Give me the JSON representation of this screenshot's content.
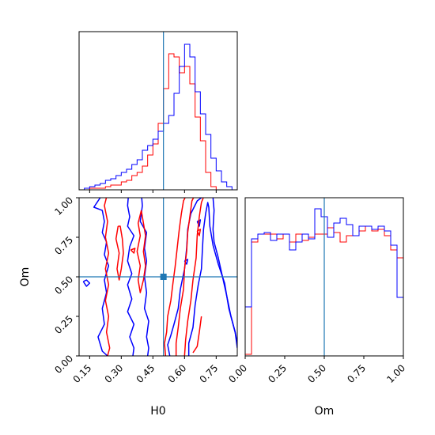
{
  "colors": {
    "red": "#ff0000",
    "blue": "#0000ff",
    "truth": "#1f77b4",
    "frame": "#000000",
    "background": "#ffffff"
  },
  "chart_data": [
    {
      "panel": "H0 marginal",
      "type": "histogram",
      "xlim": [
        0.1,
        0.85
      ],
      "ylim": [
        0,
        1
      ],
      "y_ticks_shown": false,
      "x_tick_labels_shown": false,
      "truth": 0.5,
      "bin_width": 0.025,
      "x_start": 0.1,
      "series": [
        {
          "color": "red",
          "values": [
            0.0,
            0.0,
            0.01,
            0.01,
            0.01,
            0.02,
            0.03,
            0.03,
            0.05,
            0.06,
            0.09,
            0.11,
            0.15,
            0.22,
            0.29,
            0.42,
            0.64,
            0.86,
            0.84,
            0.74,
            0.78,
            0.67,
            0.46,
            0.31,
            0.11,
            0.02,
            0.0,
            0.0,
            0.0,
            0.0
          ]
        },
        {
          "color": "blue",
          "values": [
            0.0,
            0.01,
            0.02,
            0.03,
            0.04,
            0.06,
            0.07,
            0.09,
            0.11,
            0.13,
            0.16,
            0.19,
            0.25,
            0.28,
            0.32,
            0.37,
            0.42,
            0.47,
            0.61,
            0.78,
            0.92,
            0.84,
            0.62,
            0.48,
            0.35,
            0.2,
            0.12,
            0.05,
            0.02,
            0.0
          ]
        }
      ]
    },
    {
      "panel": "H0 vs Om contours",
      "type": "contour",
      "xlabel": "H0",
      "ylabel": "Om",
      "xlim": [
        0.1,
        0.85
      ],
      "ylim": [
        0.0,
        1.0
      ],
      "x_ticks": [
        "0.15",
        "0.30",
        "0.45",
        "0.60",
        "0.75"
      ],
      "x_tick_values": [
        0.15,
        0.3,
        0.45,
        0.6,
        0.75
      ],
      "y_ticks": [
        "0.00",
        "0.25",
        "0.50",
        "0.75",
        "1.00"
      ],
      "y_tick_values": [
        0.0,
        0.25,
        0.5,
        0.75,
        1.0
      ],
      "truth": {
        "x": 0.5,
        "y": 0.5
      },
      "contours": [
        {
          "color": "blue",
          "lines": [
            [
              [
                0.225,
                1.03
              ],
              [
                0.2,
                1.0
              ],
              [
                0.17,
                0.94
              ],
              [
                0.21,
                0.92
              ],
              [
                0.22,
                0.85
              ],
              [
                0.21,
                0.78
              ],
              [
                0.23,
                0.72
              ],
              [
                0.22,
                0.64
              ],
              [
                0.24,
                0.57
              ],
              [
                0.22,
                0.48
              ],
              [
                0.23,
                0.4
              ],
              [
                0.21,
                0.3
              ],
              [
                0.22,
                0.2
              ],
              [
                0.19,
                0.12
              ],
              [
                0.21,
                0.03
              ],
              [
                0.235,
                0.0
              ]
            ],
            [
              [
                0.335,
                1.03
              ],
              [
                0.33,
                0.95
              ],
              [
                0.34,
                0.88
              ],
              [
                0.33,
                0.82
              ],
              [
                0.36,
                0.76
              ],
              [
                0.34,
                0.69
              ],
              [
                0.33,
                0.6
              ],
              [
                0.35,
                0.52
              ],
              [
                0.33,
                0.45
              ],
              [
                0.35,
                0.36
              ],
              [
                0.33,
                0.28
              ],
              [
                0.36,
                0.2
              ],
              [
                0.34,
                0.12
              ],
              [
                0.36,
                0.05
              ],
              [
                0.355,
                0.0
              ]
            ],
            [
              [
                0.395,
                1.03
              ],
              [
                0.4,
                0.95
              ],
              [
                0.39,
                0.85
              ],
              [
                0.42,
                0.78
              ],
              [
                0.41,
                0.68
              ],
              [
                0.42,
                0.6
              ],
              [
                0.41,
                0.5
              ],
              [
                0.42,
                0.4
              ],
              [
                0.41,
                0.3
              ],
              [
                0.43,
                0.22
              ],
              [
                0.42,
                0.12
              ],
              [
                0.43,
                0.05
              ],
              [
                0.425,
                0.0
              ]
            ],
            [
              [
                0.12,
                0.47
              ],
              [
                0.135,
                0.44
              ],
              [
                0.15,
                0.46
              ],
              [
                0.135,
                0.48
              ],
              [
                0.12,
                0.47
              ]
            ],
            [
              [
                0.53,
                0.0
              ],
              [
                0.52,
                0.07
              ],
              [
                0.535,
                0.13
              ],
              [
                0.55,
                0.2
              ],
              [
                0.57,
                0.3
              ],
              [
                0.58,
                0.42
              ],
              [
                0.6,
                0.55
              ],
              [
                0.61,
                0.68
              ],
              [
                0.615,
                0.8
              ],
              [
                0.63,
                0.9
              ],
              [
                0.66,
                0.98
              ],
              [
                0.7,
                1.02
              ],
              [
                0.735,
                1.0
              ],
              [
                0.74,
                0.92
              ],
              [
                0.735,
                0.8
              ],
              [
                0.74,
                0.72
              ],
              [
                0.76,
                0.62
              ],
              [
                0.78,
                0.5
              ],
              [
                0.8,
                0.38
              ],
              [
                0.82,
                0.25
              ],
              [
                0.84,
                0.15
              ],
              [
                0.85,
                0.08
              ]
            ],
            [
              [
                0.62,
                0.0
              ],
              [
                0.62,
                0.08
              ],
              [
                0.64,
                0.18
              ],
              [
                0.65,
                0.32
              ],
              [
                0.665,
                0.45
              ],
              [
                0.68,
                0.55
              ],
              [
                0.685,
                0.68
              ],
              [
                0.69,
                0.8
              ],
              [
                0.7,
                0.9
              ],
              [
                0.71,
                0.97
              ],
              [
                0.715,
                0.94
              ],
              [
                0.72,
                0.82
              ],
              [
                0.735,
                0.7
              ],
              [
                0.76,
                0.58
              ],
              [
                0.79,
                0.46
              ],
              [
                0.81,
                0.3
              ],
              [
                0.84,
                0.15
              ],
              [
                0.85,
                0.05
              ]
            ],
            [
              [
                0.66,
                0.85
              ],
              [
                0.67,
                0.82
              ],
              [
                0.675,
                0.86
              ],
              [
                0.66,
                0.85
              ]
            ],
            [
              [
                0.6,
                0.6
              ],
              [
                0.61,
                0.58
              ],
              [
                0.615,
                0.61
              ],
              [
                0.6,
                0.6
              ]
            ]
          ]
        },
        {
          "color": "red",
          "lines": [
            [
              [
                0.235,
                1.03
              ],
              [
                0.22,
                0.95
              ],
              [
                0.235,
                0.85
              ],
              [
                0.225,
                0.75
              ],
              [
                0.24,
                0.65
              ],
              [
                0.225,
                0.55
              ],
              [
                0.24,
                0.45
              ],
              [
                0.225,
                0.35
              ],
              [
                0.24,
                0.25
              ],
              [
                0.23,
                0.15
              ],
              [
                0.245,
                0.05
              ],
              [
                0.235,
                0.0
              ]
            ],
            [
              [
                0.285,
                0.82
              ],
              [
                0.275,
                0.74
              ],
              [
                0.29,
                0.65
              ],
              [
                0.28,
                0.55
              ],
              [
                0.29,
                0.48
              ],
              [
                0.3,
                0.55
              ],
              [
                0.31,
                0.65
              ],
              [
                0.305,
                0.74
              ],
              [
                0.295,
                0.82
              ],
              [
                0.285,
                0.82
              ]
            ],
            [
              [
                0.395,
                0.92
              ],
              [
                0.38,
                0.84
              ],
              [
                0.39,
                0.76
              ],
              [
                0.375,
                0.66
              ],
              [
                0.39,
                0.57
              ],
              [
                0.38,
                0.48
              ],
              [
                0.39,
                0.4
              ],
              [
                0.405,
                0.48
              ],
              [
                0.415,
                0.57
              ],
              [
                0.405,
                0.66
              ],
              [
                0.415,
                0.76
              ],
              [
                0.405,
                0.84
              ],
              [
                0.395,
                0.92
              ]
            ],
            [
              [
                0.345,
                0.67
              ],
              [
                0.36,
                0.65
              ],
              [
                0.365,
                0.68
              ],
              [
                0.345,
                0.67
              ]
            ],
            [
              [
                0.51,
                0.0
              ],
              [
                0.505,
                0.08
              ],
              [
                0.515,
                0.15
              ],
              [
                0.52,
                0.25
              ],
              [
                0.535,
                0.35
              ],
              [
                0.545,
                0.46
              ],
              [
                0.555,
                0.56
              ],
              [
                0.565,
                0.68
              ],
              [
                0.575,
                0.8
              ],
              [
                0.585,
                0.9
              ],
              [
                0.595,
                0.98
              ],
              [
                0.61,
                1.02
              ]
            ],
            [
              [
                0.56,
                0.0
              ],
              [
                0.56,
                0.08
              ],
              [
                0.57,
                0.18
              ],
              [
                0.58,
                0.3
              ],
              [
                0.595,
                0.42
              ],
              [
                0.6,
                0.55
              ],
              [
                0.61,
                0.66
              ],
              [
                0.615,
                0.78
              ],
              [
                0.625,
                0.88
              ],
              [
                0.635,
                0.98
              ],
              [
                0.65,
                1.02
              ]
            ],
            [
              [
                0.6,
                0.0
              ],
              [
                0.605,
                0.1
              ],
              [
                0.615,
                0.22
              ],
              [
                0.63,
                0.35
              ],
              [
                0.64,
                0.48
              ],
              [
                0.655,
                0.62
              ],
              [
                0.66,
                0.76
              ],
              [
                0.67,
                0.88
              ],
              [
                0.68,
                0.97
              ],
              [
                0.695,
                1.02
              ]
            ],
            [
              [
                0.64,
                0.02
              ],
              [
                0.66,
                0.06
              ],
              [
                0.67,
                0.15
              ],
              [
                0.68,
                0.25
              ]
            ],
            [
              [
                0.66,
                0.79
              ],
              [
                0.67,
                0.76
              ],
              [
                0.675,
                0.8
              ],
              [
                0.66,
                0.79
              ]
            ]
          ]
        }
      ]
    },
    {
      "panel": "Om marginal",
      "type": "histogram",
      "xlabel": "Om",
      "xlim": [
        0.0,
        1.0
      ],
      "ylim": [
        0,
        1
      ],
      "x_ticks": [
        "0.00",
        "0.25",
        "0.50",
        "0.75",
        "1.00"
      ],
      "x_tick_values": [
        0.0,
        0.25,
        0.5,
        0.75,
        1.0
      ],
      "y_ticks_shown": false,
      "truth": 0.5,
      "bin_width": 0.04,
      "x_start": 0.0,
      "series": [
        {
          "color": "red",
          "values": [
            0.01,
            0.72,
            0.77,
            0.77,
            0.77,
            0.74,
            0.77,
            0.72,
            0.77,
            0.73,
            0.75,
            0.77,
            0.77,
            0.81,
            0.78,
            0.72,
            0.76,
            0.76,
            0.79,
            0.82,
            0.79,
            0.8,
            0.76,
            0.67,
            0.62,
            0.01
          ]
        },
        {
          "color": "blue",
          "values": [
            0.31,
            0.74,
            0.77,
            0.78,
            0.73,
            0.77,
            0.77,
            0.67,
            0.72,
            0.77,
            0.74,
            0.93,
            0.88,
            0.75,
            0.84,
            0.87,
            0.83,
            0.76,
            0.82,
            0.82,
            0.8,
            0.82,
            0.79,
            0.7,
            0.37,
            0.37
          ]
        }
      ]
    }
  ]
}
